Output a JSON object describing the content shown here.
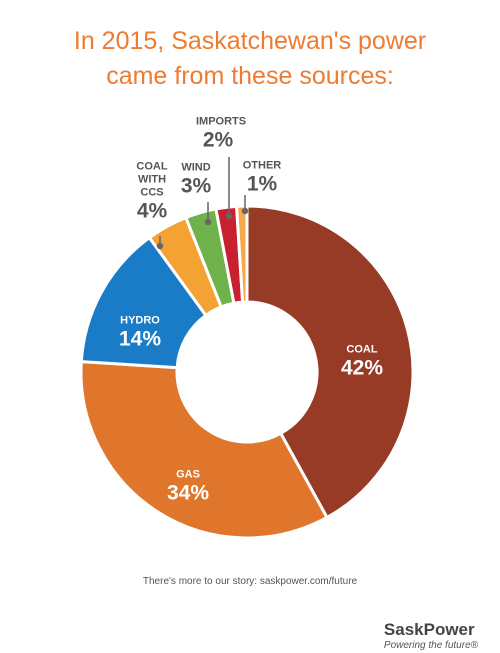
{
  "chart_data": {
    "type": "pie",
    "title": "In 2015, Saskatchewan's power came from these sources:",
    "categories": [
      "COAL",
      "GAS",
      "HYDRO",
      "COAL WITH CCS",
      "WIND",
      "IMPORTS",
      "OTHER"
    ],
    "values": [
      42,
      34,
      14,
      4,
      3,
      2,
      1
    ],
    "value_labels": [
      "42%",
      "34%",
      "14%",
      "4%",
      "3%",
      "2%",
      "1%"
    ],
    "colors": [
      "#973a26",
      "#e0762b",
      "#1a7bc6",
      "#f3a233",
      "#6fb14b",
      "#c8202f",
      "#f6a84a"
    ],
    "donut": true
  },
  "footer": "There's more to our story: saskpower.com/future",
  "logo": {
    "name": "SaskPower",
    "tagline": "Powering the future®"
  }
}
